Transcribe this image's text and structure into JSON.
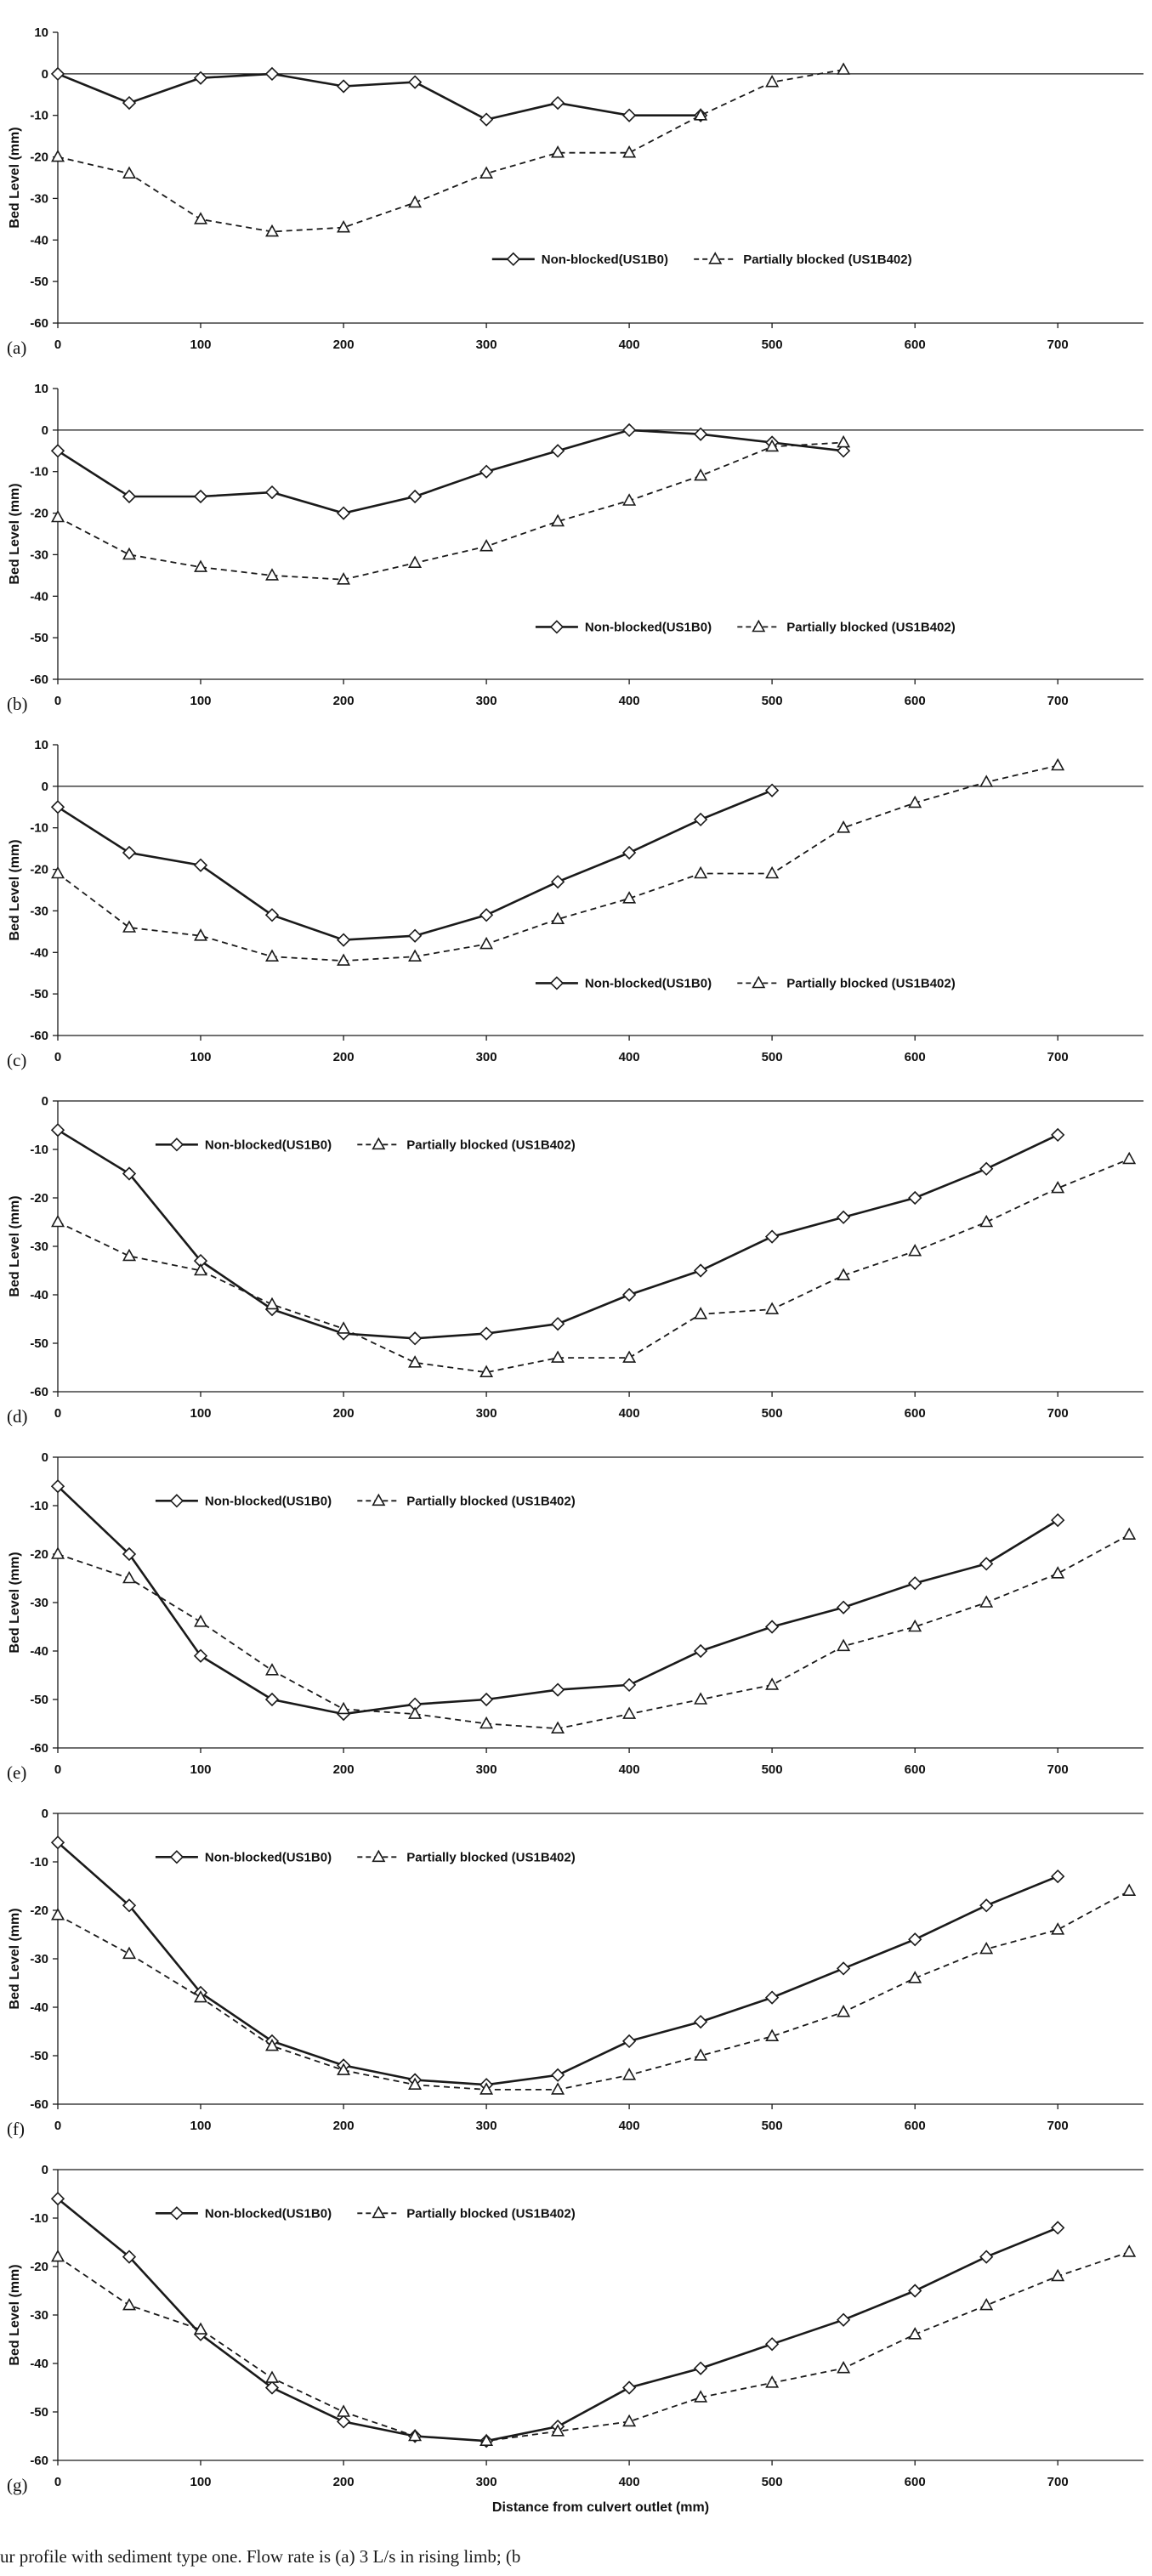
{
  "figure": {
    "caption": "ur profile with sediment type one. Flow rate is (a) 3 L/s in rising limb; (b",
    "ylabel": "Bed Level (mm)",
    "xlabel": "Distance from culvert outlet (mm)",
    "line_color": "#1a1a1a"
  },
  "chart_data": [
    {
      "type": "line",
      "panel": "(a)",
      "ylabel": "Bed Level (mm)",
      "xlabel": "",
      "xlim": [
        0,
        760
      ],
      "ylim": [
        -60,
        10
      ],
      "xticks": [
        0,
        100,
        200,
        300,
        400,
        500,
        600,
        700
      ],
      "yticks": [
        10,
        0,
        -10,
        -20,
        -30,
        -40,
        -50,
        -60
      ],
      "legend_pos": [
        0.4,
        0.78
      ],
      "series": [
        {
          "name": "Non-blocked(US1B0)",
          "marker": "diamond",
          "line": "solid",
          "x": [
            0,
            50,
            100,
            150,
            200,
            250,
            300,
            350,
            400,
            450
          ],
          "y": [
            0,
            -7,
            -1,
            0,
            -3,
            -2,
            -11,
            -7,
            -10,
            -10
          ]
        },
        {
          "name": "Partially blocked (US1B402)",
          "marker": "triangle",
          "line": "dashed",
          "x": [
            0,
            50,
            100,
            150,
            200,
            250,
            300,
            350,
            400,
            450,
            500,
            550
          ],
          "y": [
            -20,
            -24,
            -35,
            -38,
            -37,
            -31,
            -24,
            -19,
            -19,
            -10,
            -2,
            1
          ]
        }
      ]
    },
    {
      "type": "line",
      "panel": "(b)",
      "ylabel": "Bed Level (mm)",
      "xlabel": "",
      "xlim": [
        0,
        760
      ],
      "ylim": [
        -60,
        10
      ],
      "xticks": [
        0,
        100,
        200,
        300,
        400,
        500,
        600,
        700
      ],
      "yticks": [
        10,
        0,
        -10,
        -20,
        -30,
        -40,
        -50,
        -60
      ],
      "legend_pos": [
        0.44,
        0.82
      ],
      "series": [
        {
          "name": "Non-blocked(US1B0)",
          "marker": "diamond",
          "line": "solid",
          "x": [
            0,
            50,
            100,
            150,
            200,
            250,
            300,
            350,
            400,
            450,
            500,
            550
          ],
          "y": [
            -5,
            -16,
            -16,
            -15,
            -20,
            -16,
            -10,
            -5,
            0,
            -1,
            -3,
            -5
          ]
        },
        {
          "name": "Partially blocked (US1B402)",
          "marker": "triangle",
          "line": "dashed",
          "x": [
            0,
            50,
            100,
            150,
            200,
            250,
            300,
            350,
            400,
            450,
            500,
            550
          ],
          "y": [
            -21,
            -30,
            -33,
            -35,
            -36,
            -32,
            -28,
            -22,
            -17,
            -11,
            -4,
            -3
          ]
        }
      ]
    },
    {
      "type": "line",
      "panel": "(c)",
      "ylabel": "Bed Level (mm)",
      "xlabel": "",
      "xlim": [
        0,
        760
      ],
      "ylim": [
        -60,
        10
      ],
      "xticks": [
        0,
        100,
        200,
        300,
        400,
        500,
        600,
        700
      ],
      "yticks": [
        10,
        0,
        -10,
        -20,
        -30,
        -40,
        -50,
        -60
      ],
      "legend_pos": [
        0.44,
        0.82
      ],
      "series": [
        {
          "name": "Non-blocked(US1B0)",
          "marker": "diamond",
          "line": "solid",
          "x": [
            0,
            50,
            100,
            150,
            200,
            250,
            300,
            350,
            400,
            450,
            500
          ],
          "y": [
            -5,
            -16,
            -19,
            -31,
            -37,
            -36,
            -31,
            -23,
            -16,
            -8,
            -1
          ]
        },
        {
          "name": "Partially blocked (US1B402)",
          "marker": "triangle",
          "line": "dashed",
          "x": [
            0,
            50,
            100,
            150,
            200,
            250,
            300,
            350,
            400,
            450,
            500,
            550,
            600,
            650,
            700
          ],
          "y": [
            -21,
            -34,
            -36,
            -41,
            -42,
            -41,
            -38,
            -32,
            -27,
            -21,
            -21,
            -10,
            -4,
            1,
            5
          ]
        }
      ]
    },
    {
      "type": "line",
      "panel": "(d)",
      "ylabel": "Bed Level (mm)",
      "xlabel": "",
      "xlim": [
        0,
        760
      ],
      "ylim": [
        -60,
        0
      ],
      "xticks": [
        0,
        100,
        200,
        300,
        400,
        500,
        600,
        700
      ],
      "yticks": [
        0,
        -10,
        -20,
        -30,
        -40,
        -50,
        -60
      ],
      "legend_pos": [
        0.09,
        0.15
      ],
      "series": [
        {
          "name": "Non-blocked(US1B0)",
          "marker": "diamond",
          "line": "solid",
          "x": [
            0,
            50,
            100,
            150,
            200,
            250,
            300,
            350,
            400,
            450,
            500,
            550,
            600,
            650,
            700
          ],
          "y": [
            -6,
            -15,
            -33,
            -43,
            -48,
            -49,
            -48,
            -46,
            -40,
            -35,
            -28,
            -24,
            -20,
            -14,
            -7
          ]
        },
        {
          "name": "Partially blocked (US1B402)",
          "marker": "triangle",
          "line": "dashed",
          "x": [
            0,
            50,
            100,
            150,
            200,
            250,
            300,
            350,
            400,
            450,
            500,
            550,
            600,
            650,
            700,
            750
          ],
          "y": [
            -25,
            -32,
            -35,
            -42,
            -47,
            -54,
            -56,
            -53,
            -53,
            -44,
            -43,
            -36,
            -31,
            -25,
            -18,
            -12
          ]
        }
      ]
    },
    {
      "type": "line",
      "panel": "(e)",
      "ylabel": "Bed Level (mm)",
      "xlabel": "",
      "xlim": [
        0,
        760
      ],
      "ylim": [
        -60,
        0
      ],
      "xticks": [
        0,
        100,
        200,
        300,
        400,
        500,
        600,
        700
      ],
      "yticks": [
        0,
        -10,
        -20,
        -30,
        -40,
        -50,
        -60
      ],
      "legend_pos": [
        0.09,
        0.15
      ],
      "series": [
        {
          "name": "Non-blocked(US1B0)",
          "marker": "diamond",
          "line": "solid",
          "x": [
            0,
            50,
            100,
            150,
            200,
            250,
            300,
            350,
            400,
            450,
            500,
            550,
            600,
            650,
            700
          ],
          "y": [
            -6,
            -20,
            -41,
            -50,
            -53,
            -51,
            -50,
            -48,
            -47,
            -40,
            -35,
            -31,
            -26,
            -22,
            -13
          ]
        },
        {
          "name": "Partially blocked (US1B402)",
          "marker": "triangle",
          "line": "dashed",
          "x": [
            0,
            50,
            100,
            150,
            200,
            250,
            300,
            350,
            400,
            450,
            500,
            550,
            600,
            650,
            700,
            750
          ],
          "y": [
            -20,
            -25,
            -34,
            -44,
            -52,
            -53,
            -55,
            -56,
            -53,
            -50,
            -47,
            -39,
            -35,
            -30,
            -24,
            -16
          ]
        }
      ]
    },
    {
      "type": "line",
      "panel": "(f)",
      "ylabel": "Bed Level (mm)",
      "xlabel": "",
      "xlim": [
        0,
        760
      ],
      "ylim": [
        -60,
        0
      ],
      "xticks": [
        0,
        100,
        200,
        300,
        400,
        500,
        600,
        700
      ],
      "yticks": [
        0,
        -10,
        -20,
        -30,
        -40,
        -50,
        -60
      ],
      "legend_pos": [
        0.09,
        0.15
      ],
      "series": [
        {
          "name": "Non-blocked(US1B0)",
          "marker": "diamond",
          "line": "solid",
          "x": [
            0,
            50,
            100,
            150,
            200,
            250,
            300,
            350,
            400,
            450,
            500,
            550,
            600,
            650,
            700
          ],
          "y": [
            -6,
            -19,
            -37,
            -47,
            -52,
            -55,
            -56,
            -54,
            -47,
            -43,
            -38,
            -32,
            -26,
            -19,
            -13
          ]
        },
        {
          "name": "Partially blocked (US1B402)",
          "marker": "triangle",
          "line": "dashed",
          "x": [
            0,
            50,
            100,
            150,
            200,
            250,
            300,
            350,
            400,
            450,
            500,
            550,
            600,
            650,
            700,
            750
          ],
          "y": [
            -21,
            -29,
            -38,
            -48,
            -53,
            -56,
            -57,
            -57,
            -54,
            -50,
            -46,
            -41,
            -34,
            -28,
            -24,
            -16
          ]
        }
      ]
    },
    {
      "type": "line",
      "panel": "(g)",
      "ylabel": "Bed Level (mm)",
      "xlabel": "Distance from culvert outlet (mm)",
      "xlim": [
        0,
        760
      ],
      "ylim": [
        -60,
        0
      ],
      "xticks": [
        0,
        100,
        200,
        300,
        400,
        500,
        600,
        700
      ],
      "yticks": [
        0,
        -10,
        -20,
        -30,
        -40,
        -50,
        -60
      ],
      "legend_pos": [
        0.09,
        0.15
      ],
      "series": [
        {
          "name": "Non-blocked(US1B0)",
          "marker": "diamond",
          "line": "solid",
          "x": [
            0,
            50,
            100,
            150,
            200,
            250,
            300,
            350,
            400,
            450,
            500,
            550,
            600,
            650,
            700
          ],
          "y": [
            -6,
            -18,
            -34,
            -45,
            -52,
            -55,
            -56,
            -53,
            -45,
            -41,
            -36,
            -31,
            -25,
            -18,
            -12
          ]
        },
        {
          "name": "Partially blocked (US1B402)",
          "marker": "triangle",
          "line": "dashed",
          "x": [
            0,
            50,
            100,
            150,
            200,
            250,
            300,
            350,
            400,
            450,
            500,
            550,
            600,
            650,
            700,
            750
          ],
          "y": [
            -18,
            -28,
            -33,
            -43,
            -50,
            -55,
            -56,
            -54,
            -52,
            -47,
            -44,
            -41,
            -34,
            -28,
            -22,
            -17
          ]
        }
      ]
    }
  ]
}
